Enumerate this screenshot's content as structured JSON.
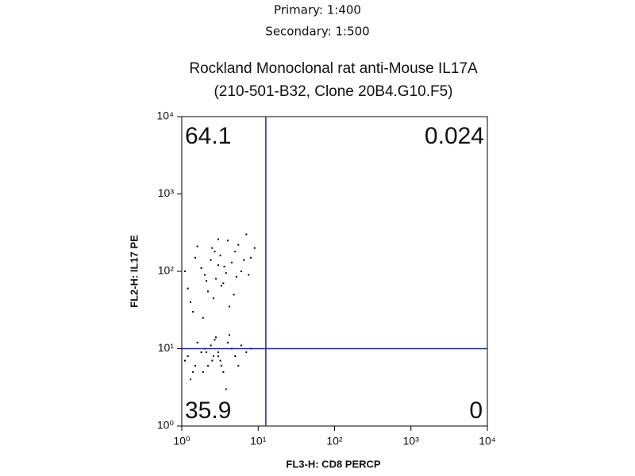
{
  "chart_data": {
    "type": "scatter",
    "header": [
      "Primary: 1:400",
      "Secondary: 1:500"
    ],
    "title": [
      "Rockland Monoclonal rat anti-Mouse IL17A",
      "(210-501-B32, Clone 20B4.G10.F5)"
    ],
    "x_label": "FL3-H: CD8 PERCP",
    "y_label": "FL2-H: IL17 PE",
    "log_x": true,
    "log_y": true,
    "xlim": [
      1,
      10000
    ],
    "ylim": [
      1,
      10000
    ],
    "xticks": [
      {
        "value": 1,
        "label": "10⁰"
      },
      {
        "value": 10,
        "label": "10¹"
      },
      {
        "value": 100,
        "label": "10²"
      },
      {
        "value": 1000,
        "label": "10³"
      },
      {
        "value": 10000,
        "label": "10⁴"
      }
    ],
    "yticks": [
      {
        "value": 1,
        "label": "10⁰"
      },
      {
        "value": 10,
        "label": "10¹"
      },
      {
        "value": 100,
        "label": "10²"
      },
      {
        "value": 1000,
        "label": "10³"
      },
      {
        "value": 10000,
        "label": "10⁴"
      }
    ],
    "gate": {
      "x": 12.6,
      "y": 10,
      "color": "#1f2a8c"
    },
    "quadrant_values": [
      64.1,
      0.024,
      35.9,
      0
    ],
    "color": "#000000",
    "x": [
      1.2,
      1.5,
      2,
      2.5,
      3,
      3.5,
      4,
      5,
      6,
      7,
      1.3,
      1.8,
      2.2,
      2.8,
      3.2,
      4.5,
      5.5,
      8,
      1.4,
      2.6,
      3.8,
      6.5,
      1.6,
      2.1,
      3.3,
      4.2,
      5.2,
      9,
      1.1,
      2.4,
      3,
      7.5,
      1.9,
      4.8,
      2.7,
      3.6,
      1.2,
      1.5,
      2,
      2.5,
      3,
      3.5,
      4,
      5,
      6,
      1.3,
      1.8,
      2.2,
      2.8,
      3.2,
      4.5,
      1.4,
      2.6,
      3.8,
      1.6,
      2.1,
      3.3,
      4.2,
      1.1,
      2.4,
      3,
      1.9,
      2.7,
      5.5,
      7,
      8
    ],
    "y": [
      60,
      150,
      90,
      200,
      120,
      70,
      250,
      180,
      100,
      300,
      40,
      110,
      55,
      80,
      160,
      130,
      220,
      150,
      30,
      45,
      95,
      140,
      210,
      75,
      65,
      35,
      85,
      200,
      100,
      140,
      260,
      90,
      25,
      50,
      180,
      115,
      8,
      6,
      10,
      7,
      9,
      5,
      12,
      8,
      11,
      4,
      9,
      6,
      14,
      7,
      10,
      5,
      8,
      3,
      12,
      9,
      6,
      15,
      7,
      11,
      8,
      5,
      13,
      6,
      9,
      10
    ]
  }
}
